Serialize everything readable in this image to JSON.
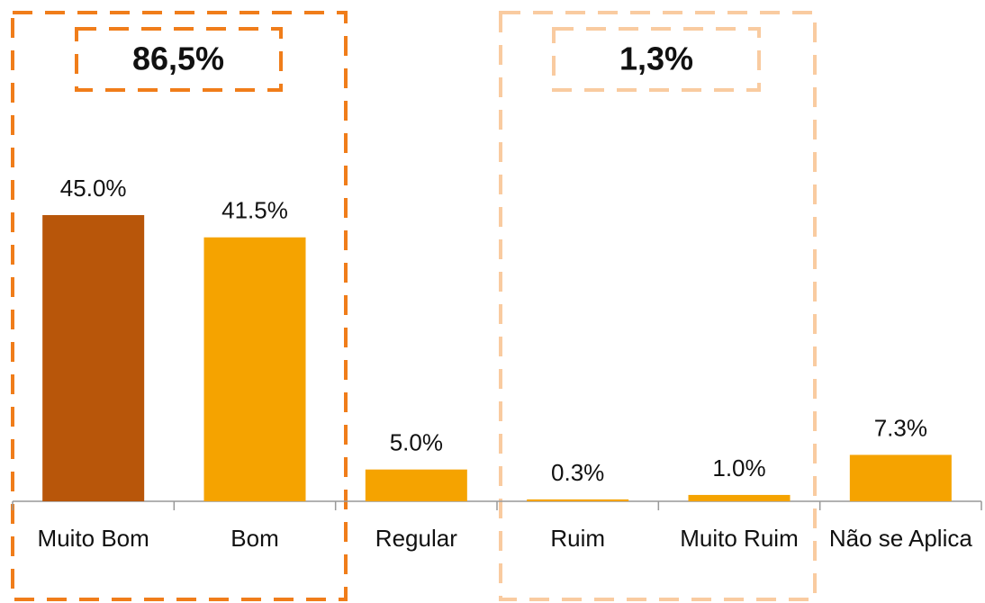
{
  "chart_data": {
    "type": "bar",
    "categories": [
      "Muito Bom",
      "Bom",
      "Regular",
      "Ruim",
      "Muito Ruim",
      "Não se Aplica"
    ],
    "values": [
      45.0,
      41.5,
      5.0,
      0.3,
      1.0,
      7.3
    ],
    "value_labels": [
      "45.0%",
      "41.5%",
      "5.0%",
      "0.3%",
      "1.0%",
      "7.3%"
    ],
    "colors": [
      "#b8560a",
      "#f5a300",
      "#f5a300",
      "#f5a300",
      "#f5a300",
      "#f5a300"
    ],
    "annotations": [
      "86,5%",
      "1,3%"
    ]
  }
}
